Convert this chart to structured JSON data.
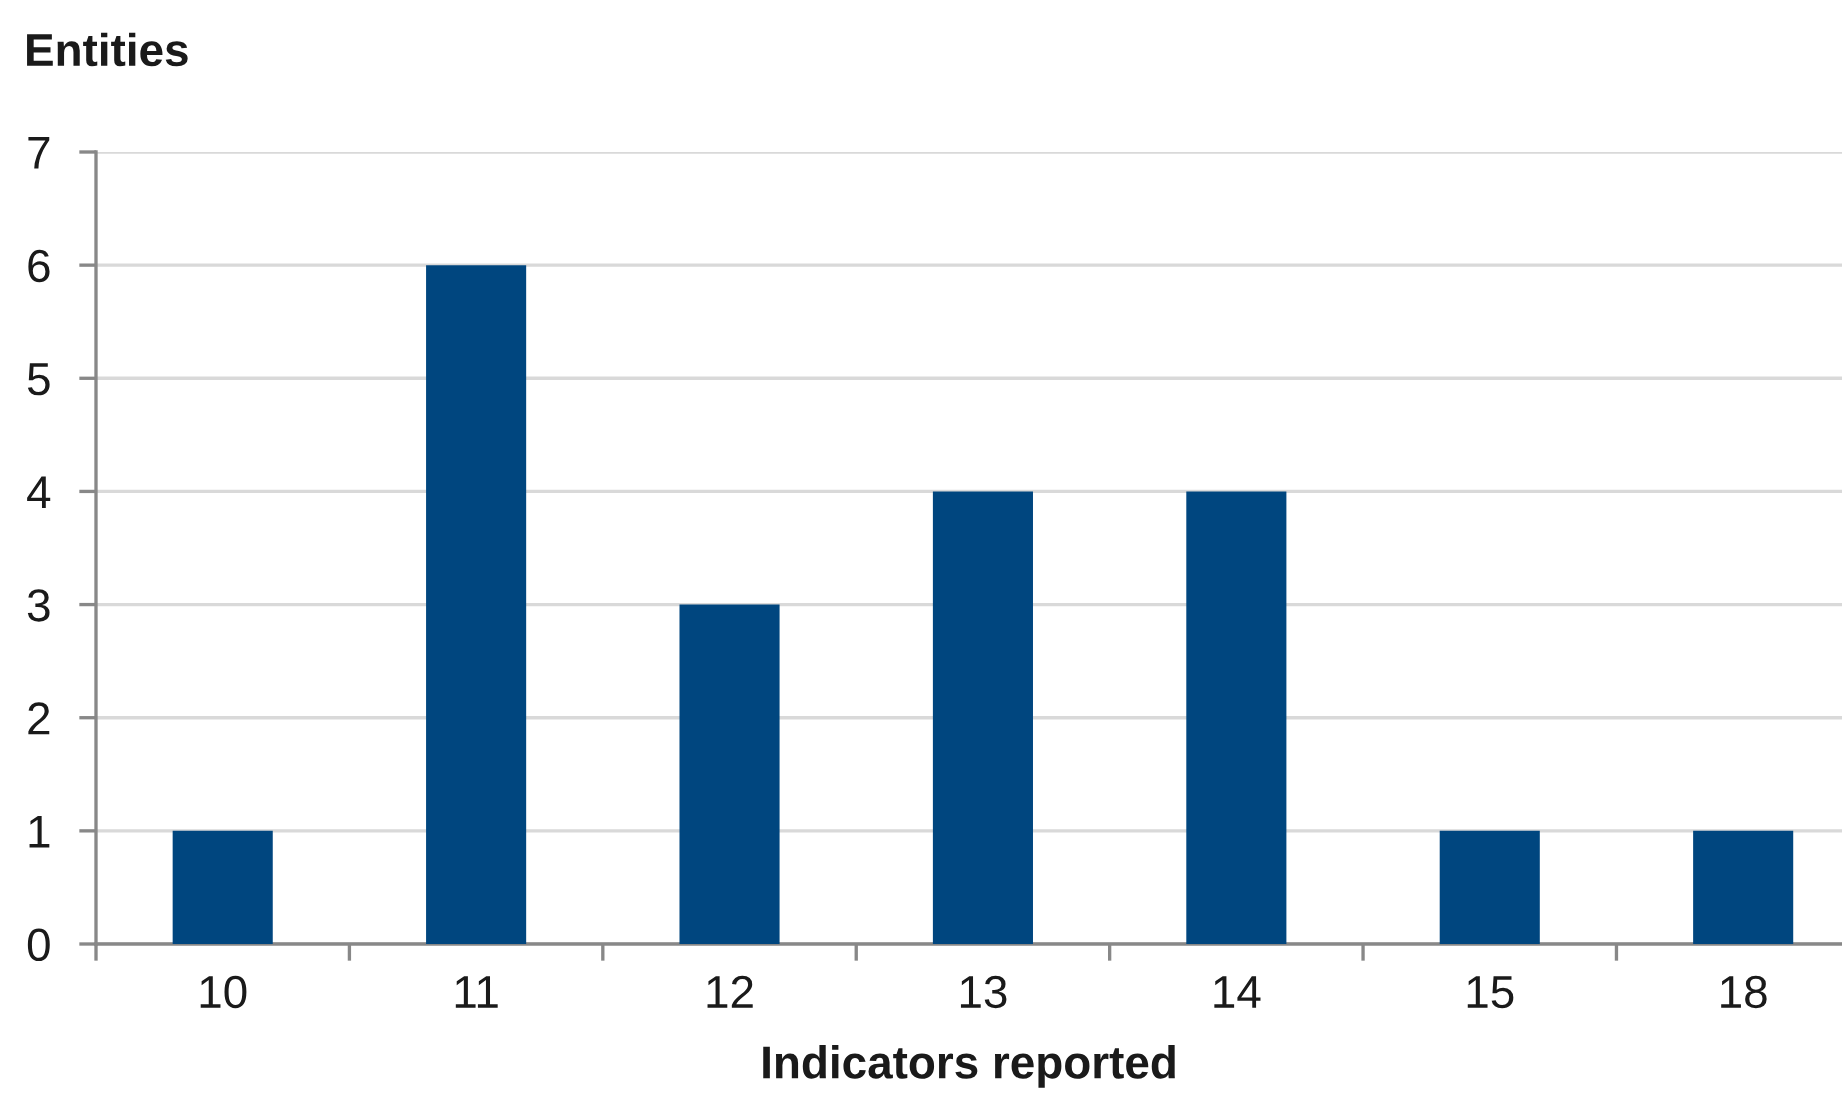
{
  "chart_data": {
    "type": "bar",
    "categories": [
      "10",
      "11",
      "12",
      "13",
      "14",
      "15",
      "18"
    ],
    "values": [
      1,
      6,
      3,
      4,
      4,
      1,
      1
    ],
    "color": "#00467f",
    "xlabel": "Indicators reported",
    "ylabel": "Entities",
    "ylim": [
      0,
      7
    ],
    "yticks": [
      0,
      1,
      2,
      3,
      4,
      5,
      6,
      7
    ],
    "grid": "y"
  }
}
